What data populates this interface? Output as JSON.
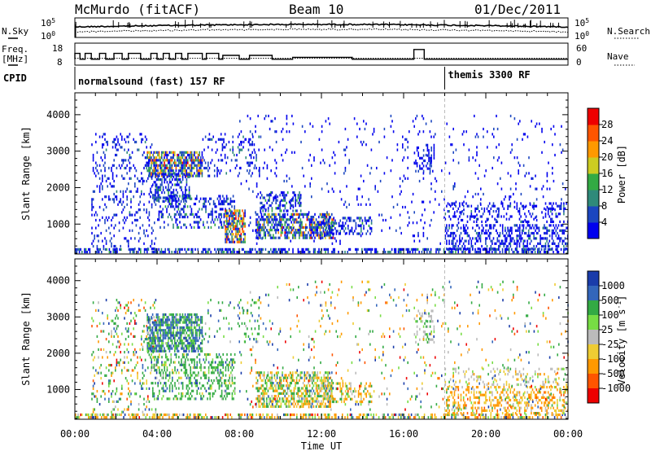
{
  "header": {
    "station": "McMurdo (fitACF)",
    "beam": "Beam 10",
    "date": "01/Dec/2011"
  },
  "chart_data": [
    {
      "type": "line",
      "panel": "noise",
      "left_label": "N.Sky",
      "right_label": "N.Search",
      "left_ticks": [
        "10^5",
        "10^0"
      ],
      "right_ticks": [
        "10^5",
        "10^0"
      ]
    },
    {
      "type": "line",
      "panel": "frequency",
      "left_label_lines": [
        "Freq.",
        "[MHz]"
      ],
      "right_label": "Nave",
      "left_ticks": [
        18,
        8
      ],
      "right_ticks": [
        60,
        0
      ],
      "freq_steps": [
        [
          0.0,
          11
        ],
        [
          0.25,
          14
        ],
        [
          0.5,
          11
        ],
        [
          0.8,
          14
        ],
        [
          1.2,
          11
        ],
        [
          1.5,
          14
        ],
        [
          1.9,
          11
        ],
        [
          2.3,
          14
        ],
        [
          2.6,
          11
        ],
        [
          3.2,
          14
        ],
        [
          3.7,
          11
        ],
        [
          4.0,
          14
        ],
        [
          4.3,
          11
        ],
        [
          4.6,
          14
        ],
        [
          4.9,
          11
        ],
        [
          5.2,
          14
        ],
        [
          5.5,
          11
        ],
        [
          6.2,
          14
        ],
        [
          6.4,
          11
        ],
        [
          7.0,
          14
        ],
        [
          7.2,
          11
        ],
        [
          8.0,
          13
        ],
        [
          8.5,
          11
        ],
        [
          9.6,
          13
        ],
        [
          10.6,
          11
        ],
        [
          13.5,
          12
        ],
        [
          14.5,
          11
        ],
        [
          16.5,
          11
        ],
        [
          17.0,
          16
        ],
        [
          17.3,
          11
        ],
        [
          24.0,
          11
        ]
      ],
      "nave_level": 11.5
    },
    {
      "type": "table",
      "panel": "cpid",
      "label": "CPID",
      "segments": [
        {
          "start": 0,
          "end": 18,
          "text": "normalsound (fast) 157 RF"
        },
        {
          "start": 18,
          "end": 24,
          "text": "themis 3300 RF"
        }
      ]
    },
    {
      "type": "heatmap",
      "panel": "power",
      "ylabel": "Slant Range [km]",
      "ylim": [
        180,
        4600
      ],
      "yticks": [
        1000,
        2000,
        3000,
        4000
      ],
      "colorbar_label": "Power [dB]",
      "colorbar_ticks": [
        28,
        24,
        20,
        16,
        12,
        8,
        4
      ],
      "colors": [
        "#0000ee",
        "#1b46c0",
        "#2f8a7a",
        "#33aa44",
        "#cccc22",
        "#ff9900",
        "#ff5500",
        "#ee0000"
      ],
      "regions": [
        {
          "t": [
            0.8,
            4.0
          ],
          "r": [
            300,
            3500
          ],
          "d": 0.16,
          "w": [
            0.6,
            0.35,
            0.05,
            0,
            0,
            0,
            0,
            0
          ]
        },
        {
          "t": [
            0.0,
            24.0
          ],
          "r": [
            180,
            340
          ],
          "d": 0.5,
          "w": [
            0.5,
            0.3,
            0.15,
            0.05,
            0,
            0,
            0,
            0
          ]
        },
        {
          "t": [
            3.5,
            6.2
          ],
          "r": [
            2300,
            3000
          ],
          "d": 0.75,
          "w": [
            0.2,
            0.25,
            0.15,
            0.1,
            0.1,
            0.1,
            0.08,
            0.02
          ]
        },
        {
          "t": [
            3.7,
            5.6
          ],
          "r": [
            1600,
            2400
          ],
          "d": 0.45,
          "w": [
            0.45,
            0.35,
            0.15,
            0.05,
            0,
            0,
            0,
            0
          ]
        },
        {
          "t": [
            4.0,
            7.8
          ],
          "r": [
            900,
            1800
          ],
          "d": 0.3,
          "w": [
            0.5,
            0.35,
            0.1,
            0.05,
            0,
            0,
            0,
            0
          ]
        },
        {
          "t": [
            7.3,
            8.3
          ],
          "r": [
            500,
            1400
          ],
          "d": 0.7,
          "w": [
            0.15,
            0.15,
            0.1,
            0.1,
            0.15,
            0.15,
            0.1,
            0.1
          ]
        },
        {
          "t": [
            8.8,
            12.6
          ],
          "r": [
            600,
            1300
          ],
          "d": 0.65,
          "w": [
            0.25,
            0.3,
            0.15,
            0.1,
            0.08,
            0.06,
            0.04,
            0.02
          ]
        },
        {
          "t": [
            9.0,
            11.0
          ],
          "r": [
            1300,
            1900
          ],
          "d": 0.4,
          "w": [
            0.4,
            0.35,
            0.15,
            0.1,
            0,
            0,
            0,
            0
          ]
        },
        {
          "t": [
            12.0,
            14.5
          ],
          "r": [
            700,
            1200
          ],
          "d": 0.4,
          "w": [
            0.45,
            0.35,
            0.15,
            0.05,
            0,
            0,
            0,
            0
          ]
        },
        {
          "t": [
            6.2,
            9.0
          ],
          "r": [
            2300,
            3500
          ],
          "d": 0.15,
          "w": [
            0.6,
            0.3,
            0.1,
            0,
            0,
            0,
            0,
            0
          ]
        },
        {
          "t": [
            16.5,
            17.5
          ],
          "r": [
            2400,
            3200
          ],
          "d": 0.35,
          "w": [
            0.7,
            0.3,
            0,
            0,
            0,
            0,
            0,
            0
          ]
        },
        {
          "t": [
            18.0,
            24.0
          ],
          "r": [
            300,
            1000
          ],
          "d": 0.35,
          "w": [
            0.6,
            0.3,
            0.1,
            0,
            0,
            0,
            0,
            0
          ]
        },
        {
          "t": [
            18.0,
            24.0
          ],
          "r": [
            1000,
            1600
          ],
          "d": 0.25,
          "w": [
            0.7,
            0.25,
            0.05,
            0,
            0,
            0,
            0,
            0
          ]
        },
        {
          "t": [
            8.0,
            24.0
          ],
          "r": [
            400,
            4000
          ],
          "d": 0.04,
          "w": [
            0.8,
            0.2,
            0,
            0,
            0,
            0,
            0,
            0
          ]
        }
      ]
    },
    {
      "type": "heatmap",
      "panel": "velocity",
      "ylabel": "Slant Range [km]",
      "ylim": [
        180,
        4600
      ],
      "yticks": [
        1000,
        2000,
        3000,
        4000
      ],
      "colorbar_label": "Velocity [m s^-1]",
      "colorbar_ticks": [
        1000,
        500,
        100,
        25,
        -25,
        -100,
        -500,
        -1000
      ],
      "colors": [
        "#1a3caa",
        "#3366bb",
        "#33aa44",
        "#77dd44",
        "#bbbbbb",
        "#eecc33",
        "#ff9900",
        "#ff5500",
        "#ee0000"
      ],
      "regions": [
        {
          "t": [
            0.8,
            4.0
          ],
          "r": [
            300,
            3500
          ],
          "d": 0.14,
          "w": [
            0.05,
            0.1,
            0.3,
            0.15,
            0.05,
            0.1,
            0.15,
            0.05,
            0.05
          ]
        },
        {
          "t": [
            0.0,
            24.0
          ],
          "r": [
            180,
            340
          ],
          "d": 0.5,
          "w": [
            0.05,
            0.05,
            0.15,
            0.1,
            0.05,
            0.2,
            0.3,
            0.05,
            0.05
          ]
        },
        {
          "t": [
            3.5,
            6.2
          ],
          "r": [
            2000,
            3100
          ],
          "d": 0.7,
          "w": [
            0.1,
            0.35,
            0.4,
            0.1,
            0.05,
            0,
            0,
            0,
            0
          ]
        },
        {
          "t": [
            3.7,
            7.8
          ],
          "r": [
            700,
            2000
          ],
          "d": 0.35,
          "w": [
            0.05,
            0.1,
            0.6,
            0.15,
            0.05,
            0.05,
            0,
            0,
            0
          ]
        },
        {
          "t": [
            8.8,
            12.6
          ],
          "r": [
            500,
            1500
          ],
          "d": 0.55,
          "w": [
            0,
            0.05,
            0.3,
            0.1,
            0.1,
            0.2,
            0.25,
            0,
            0
          ]
        },
        {
          "t": [
            12.0,
            14.5
          ],
          "r": [
            600,
            1200
          ],
          "d": 0.35,
          "w": [
            0,
            0,
            0.15,
            0.05,
            0.1,
            0.3,
            0.4,
            0,
            0
          ]
        },
        {
          "t": [
            16.5,
            17.5
          ],
          "r": [
            2300,
            3200
          ],
          "d": 0.3,
          "w": [
            0,
            0,
            0.2,
            0.2,
            0.6,
            0,
            0,
            0,
            0
          ]
        },
        {
          "t": [
            18.0,
            24.0
          ],
          "r": [
            300,
            1100
          ],
          "d": 0.35,
          "w": [
            0,
            0,
            0.05,
            0.05,
            0.1,
            0.2,
            0.55,
            0.05,
            0
          ]
        },
        {
          "t": [
            18.0,
            24.0
          ],
          "r": [
            1100,
            1600
          ],
          "d": 0.2,
          "w": [
            0,
            0,
            0.05,
            0.1,
            0.6,
            0.15,
            0.1,
            0,
            0
          ]
        },
        {
          "t": [
            6.2,
            9.0
          ],
          "r": [
            2300,
            3500
          ],
          "d": 0.12,
          "w": [
            0.1,
            0.2,
            0.4,
            0.2,
            0.1,
            0,
            0,
            0,
            0
          ]
        },
        {
          "t": [
            8.0,
            24.0
          ],
          "r": [
            400,
            4000
          ],
          "d": 0.04,
          "w": [
            0.1,
            0.1,
            0.2,
            0.1,
            0.1,
            0.1,
            0.2,
            0.05,
            0.05
          ]
        }
      ]
    }
  ],
  "time_axis": {
    "ticks": [
      "00:00",
      "04:00",
      "08:00",
      "12:00",
      "16:00",
      "20:00",
      "00:00"
    ],
    "xlabel": "Time UT"
  }
}
